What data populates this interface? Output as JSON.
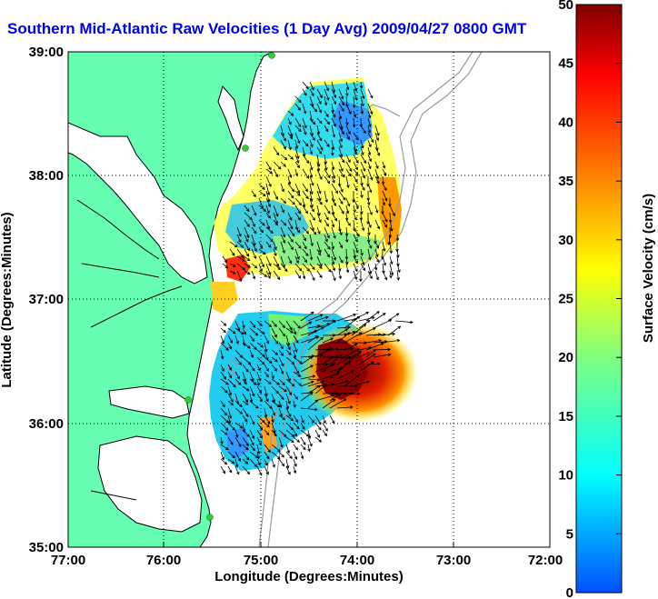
{
  "title": "Southern Mid-Atlantic Raw Velocities (1 Day Avg) 2009/04/27 0800 GMT",
  "x_axis": {
    "label": "Longitude (Degrees:Minutes)",
    "ticks": [
      "77:00",
      "76:00",
      "75:00",
      "74:00",
      "73:00",
      "72:00"
    ]
  },
  "y_axis": {
    "label": "Latitude (Degrees:Minutes)",
    "ticks": [
      "39:00",
      "38:00",
      "37:00",
      "36:00",
      "35:00"
    ]
  },
  "colorbar": {
    "label": "Surface Velocity (cm/s)",
    "ticks": [
      "50",
      "45",
      "40",
      "35",
      "30",
      "25",
      "20",
      "15",
      "10",
      "5",
      "0"
    ],
    "colors": [
      "#0000ff",
      "#00ffff",
      "#ffff00",
      "#ff0000",
      "#800000"
    ]
  },
  "colors": {
    "land": "#66ffb2",
    "coast": "#000000",
    "bathymetry": "#9a9a9a",
    "station": "#33cc33"
  }
}
